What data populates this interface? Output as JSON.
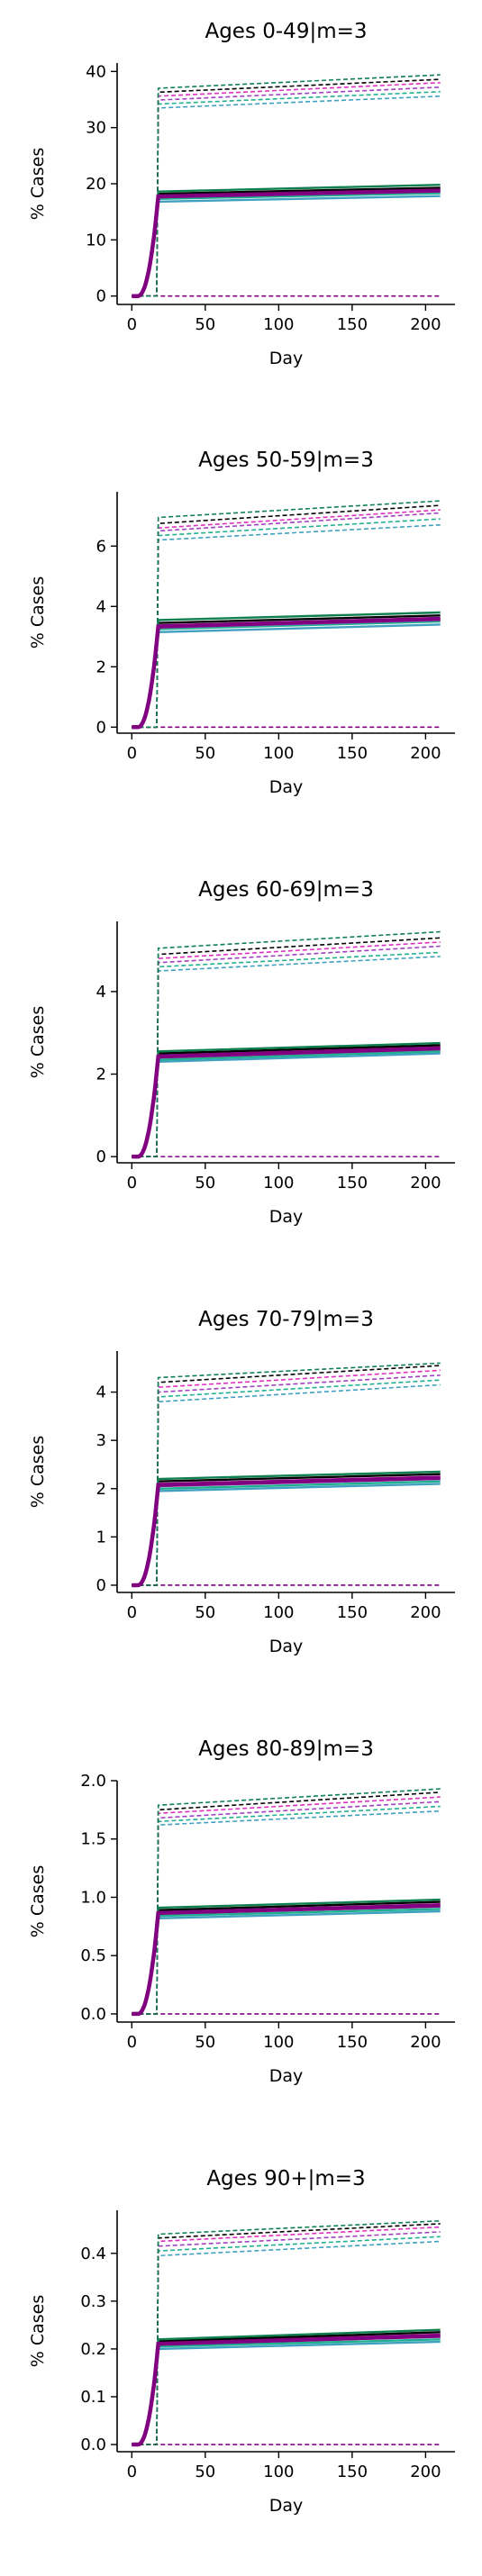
{
  "chart_data": [
    {
      "type": "line",
      "title": "Ages 0-49|m=3",
      "xlabel": "Day",
      "ylabel": "% Cases",
      "xlim": [
        -10,
        220
      ],
      "ylim": [
        -1.5,
        41.5
      ],
      "xticks": [
        0,
        50,
        100,
        150,
        200
      ],
      "yticks": [
        0,
        10,
        20,
        30,
        40
      ],
      "ytick_labels": [
        "0",
        "10",
        "20",
        "30",
        "40"
      ],
      "solid_end_values": [
        17.8,
        18.3,
        18.6,
        19.0,
        19.3,
        19.8
      ],
      "solid_start_values": [
        16.8,
        17.3,
        17.6,
        17.9,
        18.2,
        18.6
      ],
      "dashed_end_values": [
        35.6,
        36.4,
        37.2,
        38.0,
        38.6,
        39.4
      ],
      "dashed_start_values": [
        33.5,
        34.2,
        34.9,
        35.6,
        36.3,
        37.0
      ],
      "dashed_baseline": 0
    },
    {
      "type": "line",
      "title": "Ages 50-59|m=3",
      "xlabel": "Day",
      "ylabel": "% Cases",
      "xlim": [
        -10,
        220
      ],
      "ylim": [
        -0.2,
        7.8
      ],
      "xticks": [
        0,
        50,
        100,
        150,
        200
      ],
      "yticks": [
        0,
        2,
        4,
        6
      ],
      "ytick_labels": [
        "0",
        "2",
        "4",
        "6"
      ],
      "solid_end_values": [
        3.4,
        3.5,
        3.55,
        3.6,
        3.7,
        3.8
      ],
      "solid_start_values": [
        3.15,
        3.25,
        3.3,
        3.35,
        3.45,
        3.55
      ],
      "dashed_end_values": [
        6.7,
        6.9,
        7.1,
        7.2,
        7.35,
        7.5
      ],
      "dashed_start_values": [
        6.2,
        6.35,
        6.5,
        6.6,
        6.75,
        6.95
      ],
      "dashed_baseline": 0
    },
    {
      "type": "line",
      "title": "Ages 60-69|m=3",
      "xlabel": "Day",
      "ylabel": "% Cases",
      "xlim": [
        -10,
        220
      ],
      "ylim": [
        -0.15,
        5.7
      ],
      "xticks": [
        0,
        50,
        100,
        150,
        200
      ],
      "yticks": [
        0,
        2,
        4
      ],
      "ytick_labels": [
        "0",
        "2",
        "4"
      ],
      "solid_end_values": [
        2.5,
        2.55,
        2.6,
        2.65,
        2.7,
        2.75
      ],
      "solid_start_values": [
        2.3,
        2.35,
        2.4,
        2.45,
        2.5,
        2.55
      ],
      "dashed_end_values": [
        4.85,
        4.95,
        5.1,
        5.2,
        5.3,
        5.45
      ],
      "dashed_start_values": [
        4.5,
        4.6,
        4.7,
        4.8,
        4.9,
        5.05
      ],
      "dashed_baseline": 0
    },
    {
      "type": "line",
      "title": "Ages 70-79|m=3",
      "xlabel": "Day",
      "ylabel": "% Cases",
      "xlim": [
        -10,
        220
      ],
      "ylim": [
        -0.15,
        4.85
      ],
      "xticks": [
        0,
        50,
        100,
        150,
        200
      ],
      "yticks": [
        0,
        1,
        2,
        3,
        4
      ],
      "ytick_labels": [
        "0",
        "1",
        "2",
        "3",
        "4"
      ],
      "solid_end_values": [
        2.1,
        2.15,
        2.2,
        2.25,
        2.3,
        2.35
      ],
      "solid_start_values": [
        1.95,
        2.0,
        2.05,
        2.1,
        2.15,
        2.2
      ],
      "dashed_end_values": [
        4.15,
        4.25,
        4.35,
        4.45,
        4.55,
        4.6
      ],
      "dashed_start_values": [
        3.8,
        3.9,
        4.0,
        4.1,
        4.2,
        4.3
      ],
      "dashed_baseline": 0
    },
    {
      "type": "line",
      "title": "Ages 80-89|m=3",
      "xlabel": "Day",
      "ylabel": "% Cases",
      "xlim": [
        -10,
        220
      ],
      "ylim": [
        -0.07,
        2.0
      ],
      "xticks": [
        0,
        50,
        100,
        150,
        200
      ],
      "yticks": [
        0.0,
        0.5,
        1.0,
        1.5,
        2.0
      ],
      "ytick_labels": [
        "0.0",
        "0.5",
        "1.0",
        "1.5",
        "2.0"
      ],
      "solid_end_values": [
        0.88,
        0.9,
        0.92,
        0.94,
        0.96,
        0.98
      ],
      "solid_start_values": [
        0.82,
        0.84,
        0.86,
        0.87,
        0.89,
        0.91
      ],
      "dashed_end_values": [
        1.74,
        1.78,
        1.82,
        1.86,
        1.9,
        1.93
      ],
      "dashed_start_values": [
        1.62,
        1.65,
        1.68,
        1.72,
        1.75,
        1.79
      ],
      "dashed_baseline": 0
    },
    {
      "type": "line",
      "title": "Ages 90+|m=3",
      "xlabel": "Day",
      "ylabel": "% Cases",
      "xlim": [
        -10,
        220
      ],
      "ylim": [
        -0.015,
        0.49
      ],
      "xticks": [
        0,
        50,
        100,
        150,
        200
      ],
      "yticks": [
        0.0,
        0.1,
        0.2,
        0.3,
        0.4
      ],
      "ytick_labels": [
        "0.0",
        "0.1",
        "0.2",
        "0.3",
        "0.4"
      ],
      "solid_end_values": [
        0.215,
        0.22,
        0.225,
        0.23,
        0.235,
        0.24
      ],
      "solid_start_values": [
        0.2,
        0.205,
        0.21,
        0.213,
        0.216,
        0.22
      ],
      "dashed_end_values": [
        0.425,
        0.435,
        0.445,
        0.455,
        0.462,
        0.468
      ],
      "dashed_start_values": [
        0.395,
        0.405,
        0.415,
        0.425,
        0.432,
        0.44
      ],
      "dashed_baseline": 0
    }
  ],
  "colors": {
    "series": [
      "#40a0c0",
      "#20b090",
      "#a040c0",
      "#e030c0",
      "#000000",
      "#108050"
    ],
    "main": "#800080",
    "axis": "#000000"
  }
}
